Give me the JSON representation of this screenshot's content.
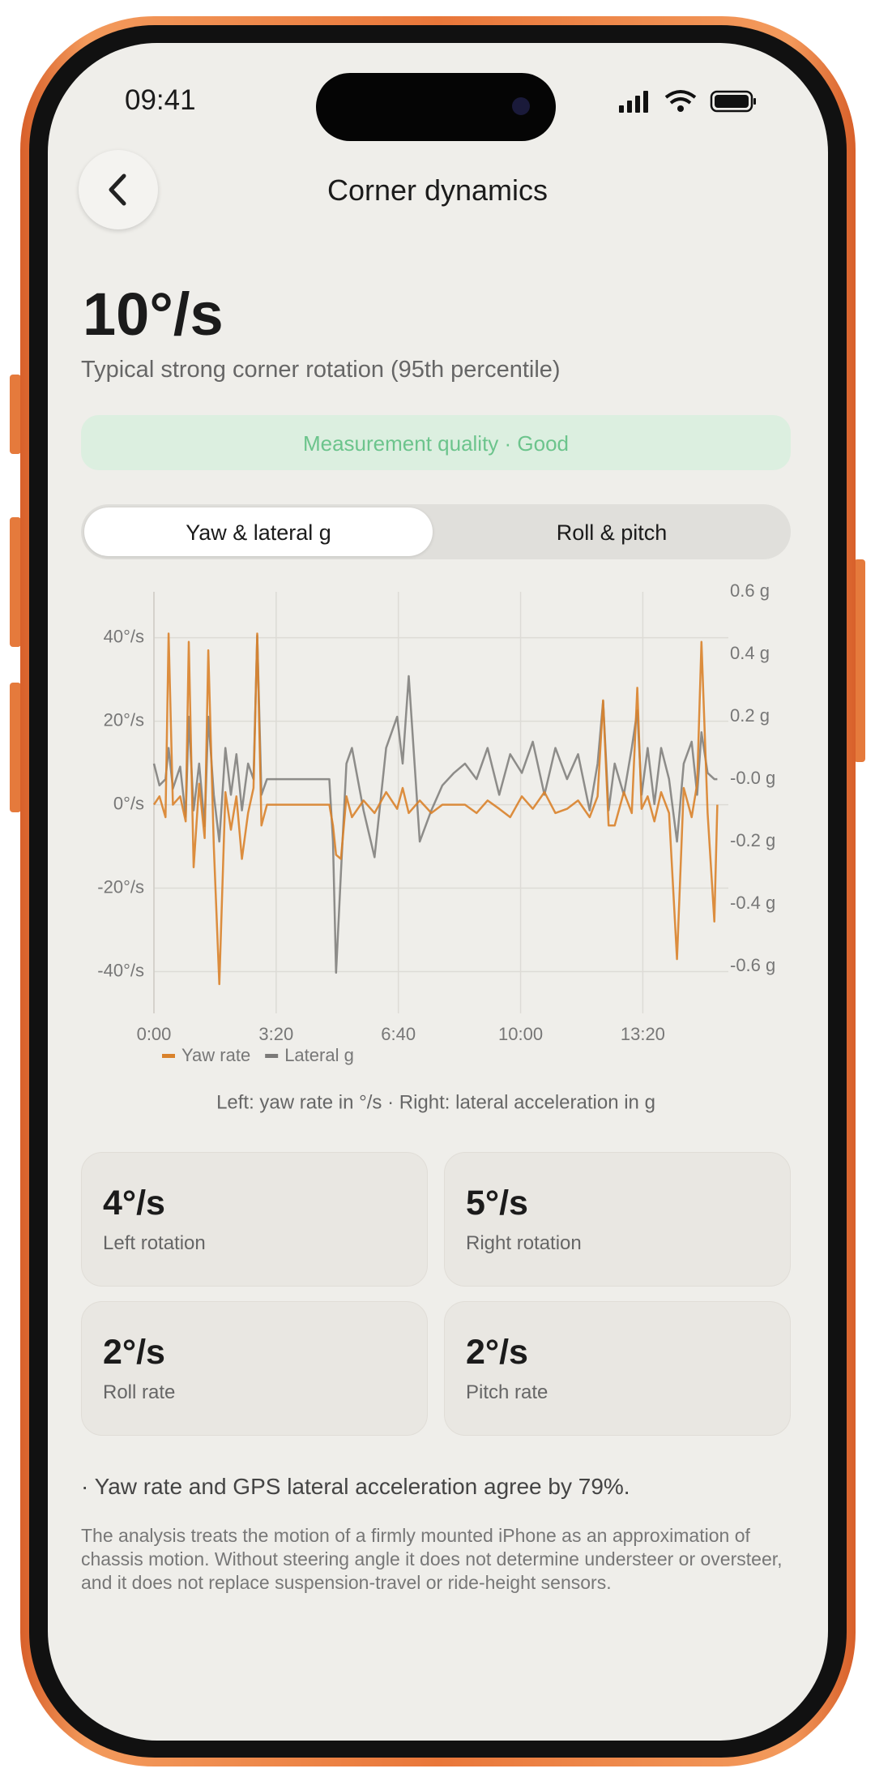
{
  "status": {
    "time": "09:41"
  },
  "header": {
    "title": "Corner dynamics"
  },
  "hero": {
    "value": "10°/s",
    "subtitle": "Typical strong corner rotation (95th percentile)"
  },
  "quality": "Measurement quality · Good",
  "tabs": [
    "Yaw & lateral g",
    "Roll & pitch"
  ],
  "chart_data": {
    "type": "line",
    "caption": "Left: yaw rate in °/s · Right: lateral acceleration in g",
    "x": [
      0,
      9,
      19,
      24,
      31,
      43,
      52,
      57,
      65,
      74,
      83,
      89,
      98,
      107,
      117,
      126,
      135,
      144,
      154,
      163,
      169,
      176,
      185,
      235,
      287,
      293,
      298,
      306,
      315,
      324,
      343,
      361,
      380,
      398,
      407,
      417,
      435,
      454,
      472,
      491,
      509,
      528,
      546,
      565,
      583,
      602,
      620,
      639,
      657,
      676,
      694,
      713,
      726,
      735,
      744,
      754,
      769,
      782,
      791,
      798,
      808,
      819,
      830,
      843,
      856,
      867,
      880,
      889,
      896,
      906,
      917,
      922
    ],
    "series": [
      {
        "name": "Yaw rate",
        "color": "#d9822b",
        "values": [
          0,
          2,
          -3,
          41,
          0,
          2,
          -4,
          39,
          -15,
          5,
          -8,
          37,
          -10,
          -43,
          3,
          -6,
          2,
          -13,
          -2,
          4,
          41,
          -5,
          0,
          0,
          0,
          -5,
          -12,
          -13,
          2,
          -3,
          1,
          -2,
          3,
          -1,
          4,
          -2,
          1,
          -2,
          0,
          0,
          0,
          -2,
          1,
          -1,
          -3,
          2,
          -1,
          3,
          -2,
          -1,
          1,
          -3,
          2,
          25,
          -5,
          -5,
          3,
          -2,
          28,
          -1,
          2,
          -4,
          3,
          -2,
          -37,
          4,
          -3,
          5,
          39,
          -2,
          -28,
          0
        ]
      },
      {
        "name": "Lateral g",
        "color": "#7b7a78",
        "axis": "y2",
        "values": [
          0.05,
          -0.02,
          0.0,
          0.1,
          -0.03,
          0.04,
          -0.12,
          0.2,
          -0.1,
          0.05,
          -0.15,
          0.2,
          -0.05,
          -0.2,
          0.1,
          -0.05,
          0.08,
          -0.1,
          0.05,
          0.0,
          0.46,
          -0.05,
          0.0,
          0.0,
          0.0,
          -0.2,
          -0.62,
          -0.3,
          0.05,
          0.1,
          -0.1,
          -0.25,
          0.1,
          0.2,
          0.05,
          0.33,
          -0.2,
          -0.1,
          -0.02,
          0.02,
          0.05,
          0.0,
          0.1,
          -0.05,
          0.08,
          0.02,
          0.12,
          -0.05,
          0.1,
          0.0,
          0.08,
          -0.1,
          0.05,
          0.25,
          -0.1,
          0.05,
          -0.05,
          0.1,
          0.22,
          -0.05,
          0.1,
          -0.08,
          0.1,
          0.0,
          -0.2,
          0.05,
          0.12,
          -0.05,
          0.15,
          0.02,
          0.0,
          0.0
        ]
      }
    ],
    "xlim": [
      0,
      940
    ],
    "xticks": [
      {
        "value": 0,
        "label": "0:00"
      },
      {
        "value": 200,
        "label": "3:20"
      },
      {
        "value": 400,
        "label": "6:40"
      },
      {
        "value": 600,
        "label": "10:00"
      },
      {
        "value": 800,
        "label": "13:20"
      }
    ],
    "ylim": [
      -50,
      51
    ],
    "yticks": [
      {
        "value": 40,
        "label": "40°/s"
      },
      {
        "value": 20,
        "label": "20°/s"
      },
      {
        "value": 0,
        "label": "0°/s"
      },
      {
        "value": -20,
        "label": "-20°/s"
      },
      {
        "value": -40,
        "label": "-40°/s"
      }
    ],
    "y2lim": [
      -0.75,
      0.6
    ],
    "y2ticks": [
      {
        "value": 0.6,
        "label": "0.6 g"
      },
      {
        "value": 0.4,
        "label": "0.4 g"
      },
      {
        "value": 0.2,
        "label": "0.2 g"
      },
      {
        "value": 0,
        "label": "-0.0 g"
      },
      {
        "value": -0.2,
        "label": "-0.2 g"
      },
      {
        "value": -0.4,
        "label": "-0.4 g"
      },
      {
        "value": -0.6,
        "label": "-0.6 g"
      }
    ],
    "grid": true,
    "legend": "bottom"
  },
  "stats": [
    {
      "value": "4°/s",
      "label": "Left rotation"
    },
    {
      "value": "5°/s",
      "label": "Right rotation"
    },
    {
      "value": "2°/s",
      "label": "Roll rate"
    },
    {
      "value": "2°/s",
      "label": "Pitch rate"
    }
  ],
  "agreement": "· Yaw rate and GPS lateral acceleration agree by 79%.",
  "disclaimer": "The analysis treats the motion of a firmly mounted iPhone as an approximation of chassis motion. Without steering angle it does not determine understeer or oversteer, and it does not replace suspension-travel or ride-height sensors."
}
